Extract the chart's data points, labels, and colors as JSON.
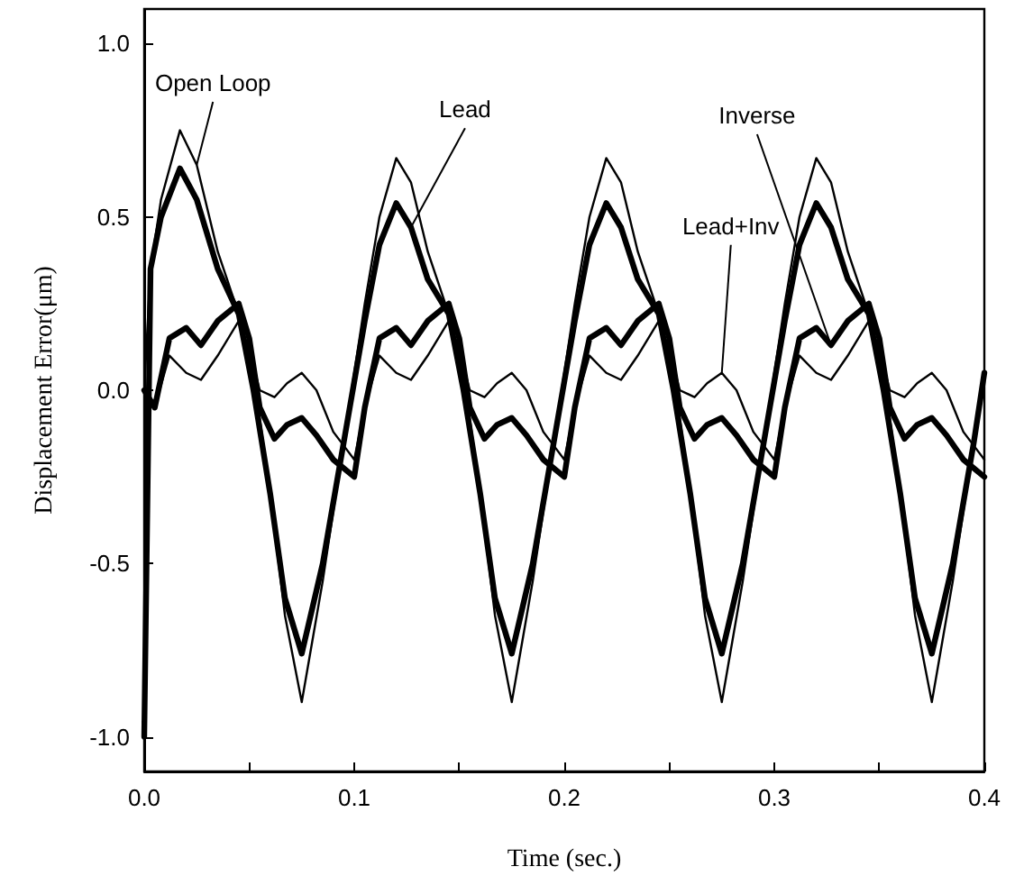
{
  "chart_data": {
    "type": "line",
    "xlabel": "Time (sec.)",
    "ylabel": "Displacement Error(μm)",
    "xlim": [
      0,
      0.4
    ],
    "ylim": [
      -1.1,
      1.1
    ],
    "xticks": [
      {
        "value": 0,
        "label": "0.0"
      },
      {
        "value": 0.05,
        "label": null
      },
      0.1,
      {
        "value": 0.15,
        "label": null
      },
      0.2,
      {
        "value": 0.25,
        "label": null
      },
      0.3,
      {
        "value": 0.35,
        "label": null
      },
      0.4
    ],
    "yticks": [
      {
        "value": -1,
        "label": "-1.0"
      },
      -0.5,
      {
        "value": 0,
        "label": "0.0"
      },
      0.5,
      {
        "value": 1,
        "label": "1.0"
      }
    ],
    "grid": false,
    "legend": false,
    "marker": "none",
    "line_style": "solid",
    "series": [
      {
        "name": "Open Loop",
        "color": "#000000",
        "x": [
          0,
          0.003,
          0.008,
          0.017,
          0.025,
          0.035,
          0.045,
          0.052,
          0.06,
          0.067,
          0.075,
          0.085,
          0.095,
          0.105,
          0.112,
          0.12,
          0.127,
          0.135,
          0.145,
          0.152,
          0.16,
          0.167,
          0.175,
          0.185,
          0.195,
          0.205,
          0.212,
          0.22,
          0.227,
          0.235,
          0.245,
          0.252,
          0.26,
          0.267,
          0.275,
          0.285,
          0.295,
          0.305,
          0.312,
          0.32,
          0.327,
          0.335,
          0.345,
          0.352,
          0.36,
          0.367,
          0.375,
          0.385,
          0.395,
          0.4
        ],
        "values": [
          0,
          0.35,
          0.55,
          0.75,
          0.65,
          0.4,
          0.22,
          0.05,
          -0.3,
          -0.65,
          -0.9,
          -0.55,
          -0.15,
          0.25,
          0.5,
          0.67,
          0.6,
          0.4,
          0.22,
          0.05,
          -0.3,
          -0.65,
          -0.9,
          -0.55,
          -0.15,
          0.25,
          0.5,
          0.67,
          0.6,
          0.4,
          0.22,
          0.05,
          -0.3,
          -0.65,
          -0.9,
          -0.55,
          -0.15,
          0.25,
          0.5,
          0.67,
          0.6,
          0.4,
          0.22,
          0.05,
          -0.3,
          -0.65,
          -0.9,
          -0.55,
          -0.15,
          0.05
        ]
      },
      {
        "name": "Lead",
        "color": "#000000",
        "x": [
          0,
          0.003,
          0.008,
          0.017,
          0.025,
          0.035,
          0.045,
          0.052,
          0.06,
          0.067,
          0.075,
          0.085,
          0.095,
          0.105,
          0.112,
          0.12,
          0.127,
          0.135,
          0.145,
          0.152,
          0.16,
          0.167,
          0.175,
          0.185,
          0.195,
          0.205,
          0.212,
          0.22,
          0.227,
          0.235,
          0.245,
          0.252,
          0.26,
          0.267,
          0.275,
          0.285,
          0.295,
          0.305,
          0.312,
          0.32,
          0.327,
          0.335,
          0.345,
          0.352,
          0.36,
          0.367,
          0.375,
          0.385,
          0.395,
          0.4
        ],
        "values": [
          -1.0,
          0.35,
          0.5,
          0.64,
          0.55,
          0.35,
          0.22,
          0.0,
          -0.3,
          -0.6,
          -0.76,
          -0.5,
          -0.15,
          0.2,
          0.42,
          0.54,
          0.47,
          0.32,
          0.22,
          0.0,
          -0.3,
          -0.6,
          -0.76,
          -0.5,
          -0.15,
          0.2,
          0.42,
          0.54,
          0.47,
          0.32,
          0.22,
          0.0,
          -0.3,
          -0.6,
          -0.76,
          -0.5,
          -0.15,
          0.2,
          0.42,
          0.54,
          0.47,
          0.32,
          0.22,
          0.0,
          -0.3,
          -0.6,
          -0.76,
          -0.5,
          -0.15,
          0.05
        ]
      },
      {
        "name": "Inverse",
        "color": "#000000",
        "x": [
          0,
          0.005,
          0.012,
          0.02,
          0.027,
          0.035,
          0.045,
          0.05,
          0.055,
          0.062,
          0.068,
          0.075,
          0.082,
          0.09,
          0.1,
          0.105,
          0.112,
          0.12,
          0.127,
          0.135,
          0.145,
          0.15,
          0.155,
          0.162,
          0.168,
          0.175,
          0.182,
          0.19,
          0.2,
          0.205,
          0.212,
          0.22,
          0.227,
          0.235,
          0.245,
          0.25,
          0.255,
          0.262,
          0.268,
          0.275,
          0.282,
          0.29,
          0.3,
          0.305,
          0.312,
          0.32,
          0.327,
          0.335,
          0.345,
          0.35,
          0.355,
          0.362,
          0.368,
          0.375,
          0.382,
          0.39,
          0.4
        ],
        "values": [
          0,
          -0.05,
          0.15,
          0.18,
          0.13,
          0.2,
          0.25,
          0.15,
          -0.05,
          -0.14,
          -0.1,
          -0.08,
          -0.13,
          -0.2,
          -0.25,
          -0.05,
          0.15,
          0.18,
          0.13,
          0.2,
          0.25,
          0.15,
          -0.05,
          -0.14,
          -0.1,
          -0.08,
          -0.13,
          -0.2,
          -0.25,
          -0.05,
          0.15,
          0.18,
          0.13,
          0.2,
          0.25,
          0.15,
          -0.05,
          -0.14,
          -0.1,
          -0.08,
          -0.13,
          -0.2,
          -0.25,
          -0.05,
          0.15,
          0.18,
          0.13,
          0.2,
          0.25,
          0.15,
          -0.05,
          -0.14,
          -0.1,
          -0.08,
          -0.13,
          -0.2,
          -0.25
        ]
      },
      {
        "name": "Lead+Inv",
        "color": "#000000",
        "x": [
          0,
          0.005,
          0.012,
          0.02,
          0.027,
          0.035,
          0.045,
          0.05,
          0.055,
          0.062,
          0.068,
          0.075,
          0.082,
          0.09,
          0.1,
          0.105,
          0.112,
          0.12,
          0.127,
          0.135,
          0.145,
          0.15,
          0.155,
          0.162,
          0.168,
          0.175,
          0.182,
          0.19,
          0.2,
          0.205,
          0.212,
          0.22,
          0.227,
          0.235,
          0.245,
          0.25,
          0.255,
          0.262,
          0.268,
          0.275,
          0.282,
          0.29,
          0.3,
          0.305,
          0.312,
          0.32,
          0.327,
          0.335,
          0.345,
          0.35,
          0.355,
          0.362,
          0.368,
          0.375,
          0.382,
          0.39,
          0.4
        ],
        "values": [
          0,
          -0.05,
          0.1,
          0.05,
          0.03,
          0.1,
          0.2,
          0.12,
          0.0,
          -0.02,
          0.02,
          0.05,
          0.0,
          -0.12,
          -0.2,
          -0.05,
          0.1,
          0.05,
          0.03,
          0.1,
          0.2,
          0.12,
          0.0,
          -0.02,
          0.02,
          0.05,
          0.0,
          -0.12,
          -0.2,
          -0.05,
          0.1,
          0.05,
          0.03,
          0.1,
          0.2,
          0.12,
          0.0,
          -0.02,
          0.02,
          0.05,
          0.0,
          -0.12,
          -0.2,
          -0.05,
          0.1,
          0.05,
          0.03,
          0.1,
          0.2,
          0.12,
          0.0,
          -0.02,
          0.02,
          0.05,
          0.0,
          -0.12,
          -0.2
        ]
      }
    ]
  }
}
